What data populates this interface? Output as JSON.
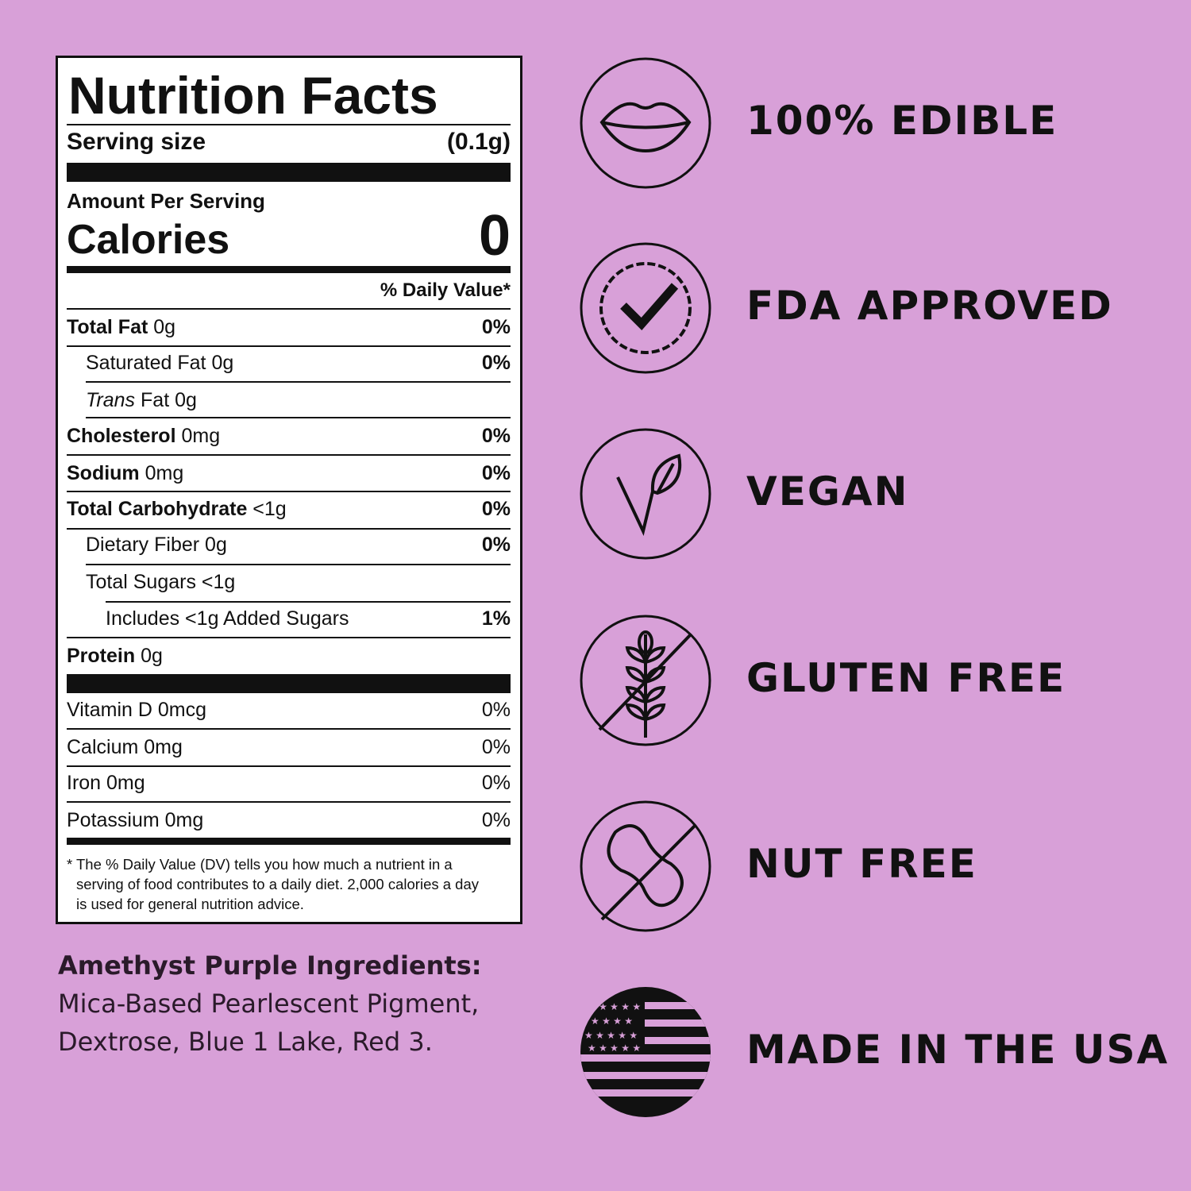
{
  "label": {
    "title": "Nutrition Facts",
    "serving_label": "Serving size",
    "serving_value": "(0.1g)",
    "amount_per_serving": "Amount Per Serving",
    "calories_label": "Calories",
    "calories_value": "0",
    "dv_header": "% Daily Value*",
    "rows": [
      {
        "name": "Total Fat",
        "amount": "0g",
        "dv": "0%"
      },
      {
        "name": "Saturated Fat",
        "amount": "0g",
        "dv": "0%"
      },
      {
        "name": "Trans",
        "name_rest": "Fat 0g"
      },
      {
        "name": "Cholesterol",
        "amount": "0mg",
        "dv": "0%"
      },
      {
        "name": "Sodium",
        "amount": "0mg",
        "dv": "0%"
      },
      {
        "name": "Total Carbohydrate",
        "amount": "<1g",
        "dv": "0%"
      },
      {
        "name": "Dietary Fiber",
        "amount": "0g",
        "dv": "0%"
      },
      {
        "name": "Total Sugars",
        "amount": "<1g"
      },
      {
        "name": "Includes <1g Added Sugars",
        "dv": "1%"
      },
      {
        "name": "Protein",
        "amount": "0g"
      }
    ],
    "vitamins": [
      {
        "name": "Vitamin D 0mcg",
        "dv": "0%"
      },
      {
        "name": "Calcium 0mg",
        "dv": "0%"
      },
      {
        "name": "Iron 0mg",
        "dv": "0%"
      },
      {
        "name": "Potassium 0mg",
        "dv": "0%"
      }
    ],
    "footnote": [
      "* The % Daily Value (DV) tells you how much a nutrient in a",
      "serving of food contributes to a daily diet. 2,000 calories a day",
      "is used for general nutrition advice."
    ]
  },
  "ingredients": {
    "heading": "Amethyst Purple Ingredients:",
    "lines": [
      "Mica-Based Pearlescent Pigment,",
      "Dextrose, Blue 1 Lake, Red 3."
    ]
  },
  "badges": [
    {
      "icon": "lips-icon",
      "label": "100% EDIBLE"
    },
    {
      "icon": "check-seal-icon",
      "label": "FDA APPROVED"
    },
    {
      "icon": "leaf-v-icon",
      "label": "VEGAN"
    },
    {
      "icon": "no-wheat-icon",
      "label": "GLUTEN FREE"
    },
    {
      "icon": "no-peanut-icon",
      "label": "NUT FREE"
    },
    {
      "icon": "us-flag-icon",
      "label": "MADE IN THE USA"
    }
  ],
  "colors": {
    "background": "#d8a0d8",
    "ink": "#111111"
  }
}
